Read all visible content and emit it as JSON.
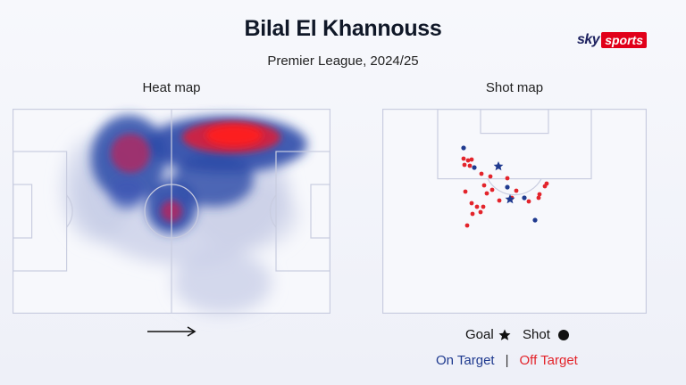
{
  "header": {
    "title": "Bilal El Khannouss",
    "subtitle": "Premier League, 2024/25",
    "logo_sky": "sky",
    "logo_sports": "sports"
  },
  "panels": {
    "heat_label": "Heat map",
    "shot_label": "Shot map"
  },
  "legend": {
    "goal_label": "Goal",
    "shot_label": "Shot",
    "on_target": "On Target",
    "separator": "|",
    "off_target": "Off Target"
  },
  "colors": {
    "on_target": "#1f3a8f",
    "off_target": "#e3242b",
    "pitch_line": "#c9cde0",
    "brand_red": "#e1001a"
  },
  "icons": {
    "goal": "star-icon",
    "shot": "circle-icon",
    "direction": "arrow-right-icon"
  }
}
